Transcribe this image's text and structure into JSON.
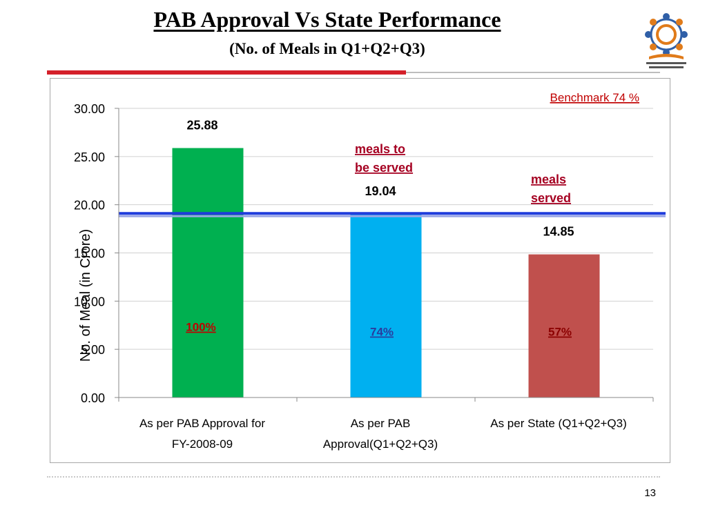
{
  "slide": {
    "title": "PAB Approval  Vs State Performance",
    "subtitle": "(No. of Meals in Q1+Q2+Q3)",
    "page_number": "13",
    "logo_icon": "mid-day-meal-scheme-logo",
    "accent_color": "#d4202a"
  },
  "chart_data": {
    "type": "bar",
    "categories": [
      [
        "As per PAB Approval for",
        "FY-2008-09"
      ],
      [
        "As per PAB",
        "Approval(Q1+Q2+Q3)"
      ],
      [
        "As per State (Q1+Q2+Q3)"
      ]
    ],
    "values": [
      25.88,
      19.04,
      14.85
    ],
    "value_labels": [
      "25.88",
      "19.04",
      "14.85"
    ],
    "bar_colors": [
      "#00b050",
      "#00b0f0",
      "#c0504d"
    ],
    "percent_labels": [
      "100%",
      "74%",
      "57%"
    ],
    "percent_label_colors": [
      "#c00000",
      "#2a3c9e",
      "#8b0000"
    ],
    "ylabel": "No. of Meal  (in Crore)",
    "ylim": [
      0,
      30
    ],
    "yticks": [
      "0.00",
      "5.00",
      "10.00",
      "15.00",
      "20.00",
      "25.00",
      "30.00"
    ],
    "grid": true,
    "benchmark": {
      "value": 19.1,
      "label": "Benchmark 74 %",
      "color": "#1f3cdc"
    },
    "annotations": [
      {
        "lines": [
          "meals to",
          "be served"
        ],
        "color": "#a50021"
      },
      {
        "lines": [
          "meals",
          "served"
        ],
        "color": "#a50021"
      }
    ]
  }
}
